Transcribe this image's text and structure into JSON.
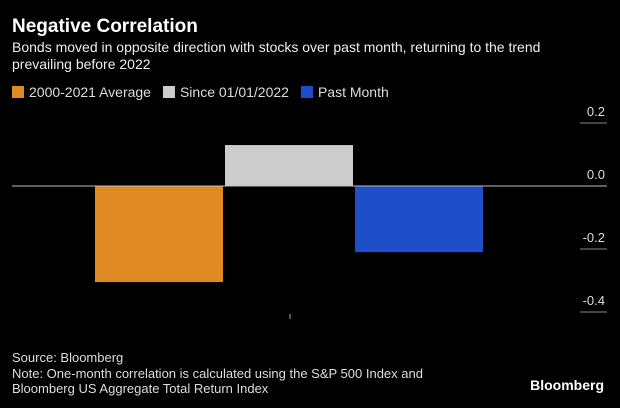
{
  "chart_data": {
    "type": "bar",
    "title": "Negative Correlation",
    "subtitle": "Bonds moved in opposite direction with stocks over past month, returning to the trend prevailing before 2022",
    "categories": [
      null
    ],
    "series": [
      {
        "name": "2000-2021 Average",
        "color": "#e08a24",
        "values": [
          -0.305
        ]
      },
      {
        "name": "Since 01/01/2022",
        "color": "#cccccc",
        "values": [
          0.13
        ]
      },
      {
        "name": "Past Month",
        "color": "#1f4fc8",
        "values": [
          -0.21
        ]
      }
    ],
    "ylim": [
      -0.4,
      0.2
    ],
    "yticks": [
      0.2,
      {
        "value": 0,
        "label": "0.0"
      },
      -0.2,
      -0.4
    ],
    "source": "Source: Bloomberg",
    "note": "Note: One-month correlation is calculated using the S&P 500 Index and Bloomberg US Aggregate Total Return Index",
    "brand": "Bloomberg"
  }
}
